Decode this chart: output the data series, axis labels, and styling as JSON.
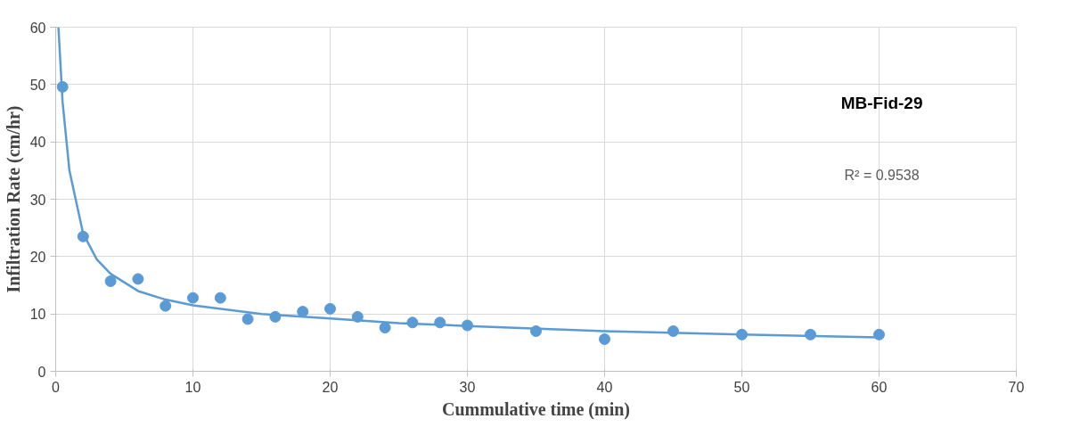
{
  "chart_data": {
    "type": "scatter",
    "xlabel": "Cummulative time (min)",
    "ylabel": "Infiltration Rate (cm/hr)",
    "xlim": [
      0,
      70
    ],
    "xticks": [
      0,
      10,
      20,
      30,
      40,
      50,
      60,
      70
    ],
    "ylim": [
      0,
      60
    ],
    "yticks": [
      0,
      10,
      20,
      30,
      40,
      50,
      60
    ],
    "grid": true,
    "marker": "circle",
    "annotations": [
      "MB-Fid-29",
      "R² = 0.9538"
    ],
    "series": [
      {
        "color": "#5b9bd5",
        "x": [
          0.5,
          2,
          4,
          6,
          8,
          10,
          12,
          14,
          16,
          18,
          20,
          22,
          24,
          26,
          28,
          30,
          35,
          40,
          45,
          50,
          55,
          60
        ],
        "values": [
          49.6,
          23.5,
          15.7,
          16.1,
          11.4,
          12.8,
          12.8,
          9.1,
          9.5,
          10.4,
          10.9,
          9.5,
          7.6,
          8.5,
          8.5,
          8.0,
          7.0,
          5.6,
          7.0,
          6.4,
          6.4,
          6.4
        ]
      },
      {
        "type": "line",
        "color": "#5b9bd5",
        "marker": "none",
        "x": [
          0.2,
          0.5,
          1,
          2,
          3,
          4,
          6,
          8,
          10,
          15,
          20,
          25,
          30,
          40,
          50,
          60
        ],
        "values": [
          60,
          47,
          35,
          24,
          19.5,
          17,
          14,
          12.5,
          11.5,
          10,
          9.2,
          8.4,
          7.9,
          7,
          6.4,
          5.9
        ]
      }
    ]
  }
}
